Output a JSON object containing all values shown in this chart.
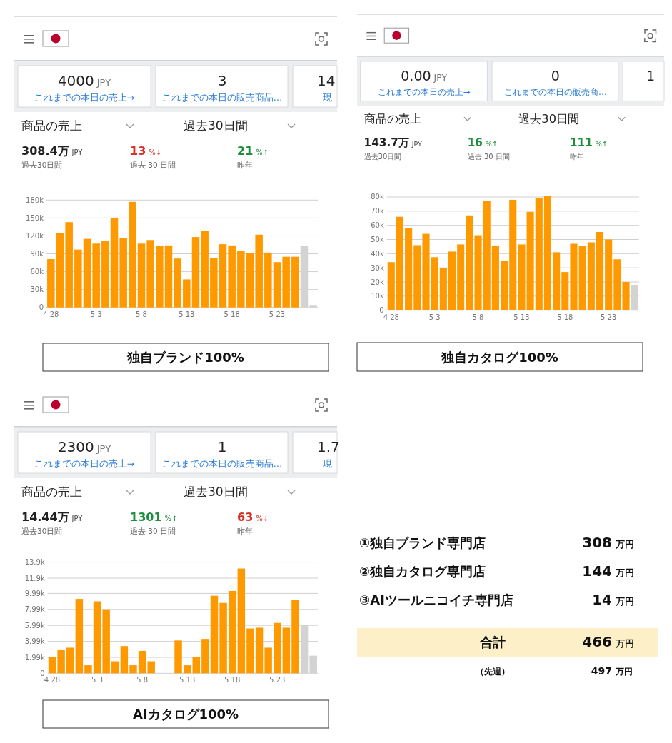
{
  "chart_data": [
    {
      "type": "bar",
      "title": "独自ブランド100%",
      "categories": [
        "4 28",
        null,
        null,
        null,
        null,
        "5 3",
        null,
        null,
        null,
        null,
        "5 8",
        null,
        null,
        null,
        null,
        "5 13",
        null,
        null,
        null,
        null,
        "5 18",
        null,
        null,
        null,
        null,
        "5 23",
        null,
        null,
        null,
        null
      ],
      "values": [
        81000,
        125000,
        143000,
        97000,
        115000,
        107000,
        111000,
        150000,
        116000,
        177000,
        107000,
        113000,
        103000,
        104000,
        82000,
        47000,
        118000,
        128000,
        83000,
        106000,
        104000,
        95000,
        91000,
        122000,
        92000,
        76000,
        85000,
        85000,
        103000,
        3000
      ],
      "colors": [
        "#ff9900",
        "#ff9900",
        "#ff9900",
        "#ff9900",
        "#ff9900",
        "#ff9900",
        "#ff9900",
        "#ff9900",
        "#ff9900",
        "#ff9900",
        "#ff9900",
        "#ff9900",
        "#ff9900",
        "#ff9900",
        "#ff9900",
        "#ff9900",
        "#ff9900",
        "#ff9900",
        "#ff9900",
        "#ff9900",
        "#ff9900",
        "#ff9900",
        "#ff9900",
        "#ff9900",
        "#ff9900",
        "#ff9900",
        "#ff9900",
        "#ff9900",
        "#d3d3d3",
        "#d3d3d3"
      ],
      "ylim": [
        0,
        180000
      ],
      "yticks": [
        {
          "value": 0,
          "label": "0"
        },
        {
          "value": 30000,
          "label": "30k"
        },
        {
          "value": 60000,
          "label": "60k"
        },
        {
          "value": 90000,
          "label": "90k"
        },
        {
          "value": 120000,
          "label": "120k"
        },
        {
          "value": 150000,
          "label": "150k"
        },
        {
          "value": 180000,
          "label": "180k"
        }
      ],
      "grid": "y",
      "annotations": [
        "4000",
        "JPY",
        "これまでの本日の売上→",
        "3",
        "これまでの本日の販売商品…",
        "14",
        "現",
        "商品の売上",
        "過去30日間",
        "308.4万",
        "JPY",
        "過去30日間",
        "13",
        "%↓",
        "過去 30 日間",
        "21",
        "%↑",
        "昨年"
      ]
    },
    {
      "type": "bar",
      "title": "独自カタログ100%",
      "categories": [
        "4 28",
        null,
        null,
        null,
        null,
        "5 3",
        null,
        null,
        null,
        null,
        "5 8",
        null,
        null,
        null,
        null,
        "5 13",
        null,
        null,
        null,
        null,
        "5 18",
        null,
        null,
        null,
        null,
        "5 23",
        null,
        null,
        null
      ],
      "values": [
        34000,
        66000,
        58000,
        46000,
        54000,
        37500,
        30000,
        41500,
        46500,
        67000,
        53000,
        77000,
        45500,
        35000,
        78000,
        46500,
        69500,
        79000,
        80500,
        41000,
        27000,
        47000,
        45500,
        48000,
        55300,
        50000,
        36000,
        20000,
        17600
      ],
      "colors": [
        "#ff9900",
        "#ff9900",
        "#ff9900",
        "#ff9900",
        "#ff9900",
        "#ff9900",
        "#ff9900",
        "#ff9900",
        "#ff9900",
        "#ff9900",
        "#ff9900",
        "#ff9900",
        "#ff9900",
        "#ff9900",
        "#ff9900",
        "#ff9900",
        "#ff9900",
        "#ff9900",
        "#ff9900",
        "#ff9900",
        "#ff9900",
        "#ff9900",
        "#ff9900",
        "#ff9900",
        "#ff9900",
        "#ff9900",
        "#ff9900",
        "#ff9900",
        "#d3d3d3"
      ],
      "ylim": [
        0,
        81000
      ],
      "yticks": [
        {
          "value": 0,
          "label": "0"
        },
        {
          "value": 10000,
          "label": "10k"
        },
        {
          "value": 20000,
          "label": "20k"
        },
        {
          "value": 30000,
          "label": "30k"
        },
        {
          "value": 40000,
          "label": "40k"
        },
        {
          "value": 50000,
          "label": "50k"
        },
        {
          "value": 60000,
          "label": "60k"
        },
        {
          "value": 70000,
          "label": "70k"
        },
        {
          "value": 80000,
          "label": "80k"
        }
      ],
      "grid": "y",
      "annotations": [
        "0.00",
        "JPY",
        "これまでの本日の売上→",
        "0",
        "これまでの本日の販売商…",
        "1",
        "商品の売上",
        "過去30日間",
        "143.7万",
        "JPY",
        "過去30日間",
        "16",
        "%↑",
        "過去 30 日間",
        "111",
        "%↑",
        "昨年"
      ]
    },
    {
      "type": "bar",
      "title": "AIカタログ100%",
      "categories": [
        "4 28",
        null,
        null,
        null,
        null,
        "5 3",
        null,
        null,
        null,
        null,
        "5 8",
        null,
        null,
        null,
        null,
        "5 13",
        null,
        null,
        null,
        null,
        "5 18",
        null,
        null,
        null,
        null,
        "5 23",
        null,
        null,
        null,
        null
      ],
      "values": [
        2000,
        2900,
        3200,
        9300,
        1000,
        9000,
        8000,
        1500,
        3400,
        1000,
        2800,
        1500,
        0,
        0,
        4100,
        1000,
        2000,
        4300,
        9700,
        8800,
        10300,
        13100,
        5600,
        5700,
        3200,
        6300,
        5700,
        9200,
        6000,
        2200
      ],
      "colors": [
        "#ff9900",
        "#ff9900",
        "#ff9900",
        "#ff9900",
        "#ff9900",
        "#ff9900",
        "#ff9900",
        "#ff9900",
        "#ff9900",
        "#ff9900",
        "#ff9900",
        "#ff9900",
        "#ff9900",
        "#ff9900",
        "#ff9900",
        "#ff9900",
        "#ff9900",
        "#ff9900",
        "#ff9900",
        "#ff9900",
        "#ff9900",
        "#ff9900",
        "#ff9900",
        "#ff9900",
        "#ff9900",
        "#ff9900",
        "#ff9900",
        "#ff9900",
        "#d3d3d3",
        "#d3d3d3"
      ],
      "ylim": [
        0,
        13900
      ],
      "yticks": [
        {
          "value": 0,
          "label": "0"
        },
        {
          "value": 1990,
          "label": "1.99k"
        },
        {
          "value": 3990,
          "label": "3.99k"
        },
        {
          "value": 5990,
          "label": "5.99k"
        },
        {
          "value": 7990,
          "label": "7.99k"
        },
        {
          "value": 9990,
          "label": "9.99k"
        },
        {
          "value": 11900,
          "label": "11.9k"
        },
        {
          "value": 13900,
          "label": "13.9k"
        }
      ],
      "grid": "y",
      "annotations": [
        "2300",
        "JPY",
        "これまでの本日の売上→",
        "1",
        "これまでの本日の販売商品…",
        "1.7",
        "現",
        "商品の売上",
        "過去30日間",
        "14.44万",
        "JPY",
        "過去30日間",
        "1301",
        "%↑",
        "過去 30 日間",
        "63",
        "%↓",
        "昨年"
      ]
    },
    {
      "type": "other",
      "annotations": [
        "①独自ブランド専門店",
        "308",
        "万円",
        "②独自カタログ専門店",
        "144",
        "万円",
        "③AIツールニコイチ専門店",
        "14",
        "万円",
        "合計",
        "466",
        "万円",
        "（先週）",
        "497",
        "万円"
      ]
    }
  ]
}
